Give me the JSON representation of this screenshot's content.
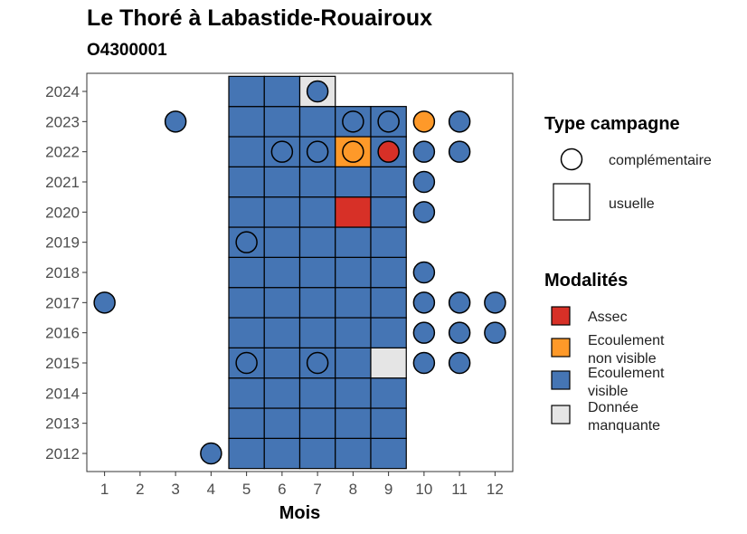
{
  "title": "Le Thoré à Labastide-Rouairoux",
  "subtitle": "O4300001",
  "colors": {
    "Assec": "#d73027",
    "Ecoulement non visible": "#fe9929",
    "Ecoulement visible": "#4575b4",
    "Donnée manquante": "#e5e5e5"
  },
  "chart_data": {
    "type": "heatmap",
    "xlabel": "Mois",
    "ylabel": "",
    "x_ticks": [
      "1",
      "2",
      "3",
      "4",
      "5",
      "6",
      "7",
      "8",
      "9",
      "10",
      "11",
      "12"
    ],
    "y_ticks": [
      "2012",
      "2013",
      "2014",
      "2015",
      "2016",
      "2017",
      "2018",
      "2019",
      "2020",
      "2021",
      "2022",
      "2023",
      "2024"
    ],
    "xlim": [
      0.5,
      12.5
    ],
    "ylim": [
      2011.4,
      2024.6
    ],
    "usuelle": [
      {
        "year": 2012,
        "month": 5,
        "modalite": "Ecoulement visible"
      },
      {
        "year": 2012,
        "month": 6,
        "modalite": "Ecoulement visible"
      },
      {
        "year": 2012,
        "month": 7,
        "modalite": "Ecoulement visible"
      },
      {
        "year": 2012,
        "month": 8,
        "modalite": "Ecoulement visible"
      },
      {
        "year": 2012,
        "month": 9,
        "modalite": "Ecoulement visible"
      },
      {
        "year": 2013,
        "month": 5,
        "modalite": "Ecoulement visible"
      },
      {
        "year": 2013,
        "month": 6,
        "modalite": "Ecoulement visible"
      },
      {
        "year": 2013,
        "month": 7,
        "modalite": "Ecoulement visible"
      },
      {
        "year": 2013,
        "month": 8,
        "modalite": "Ecoulement visible"
      },
      {
        "year": 2013,
        "month": 9,
        "modalite": "Ecoulement visible"
      },
      {
        "year": 2014,
        "month": 5,
        "modalite": "Ecoulement visible"
      },
      {
        "year": 2014,
        "month": 6,
        "modalite": "Ecoulement visible"
      },
      {
        "year": 2014,
        "month": 7,
        "modalite": "Ecoulement visible"
      },
      {
        "year": 2014,
        "month": 8,
        "modalite": "Ecoulement visible"
      },
      {
        "year": 2014,
        "month": 9,
        "modalite": "Ecoulement visible"
      },
      {
        "year": 2015,
        "month": 5,
        "modalite": "Ecoulement visible"
      },
      {
        "year": 2015,
        "month": 6,
        "modalite": "Ecoulement visible"
      },
      {
        "year": 2015,
        "month": 7,
        "modalite": "Ecoulement visible"
      },
      {
        "year": 2015,
        "month": 8,
        "modalite": "Ecoulement visible"
      },
      {
        "year": 2015,
        "month": 9,
        "modalite": "Donnée manquante"
      },
      {
        "year": 2016,
        "month": 5,
        "modalite": "Ecoulement visible"
      },
      {
        "year": 2016,
        "month": 6,
        "modalite": "Ecoulement visible"
      },
      {
        "year": 2016,
        "month": 7,
        "modalite": "Ecoulement visible"
      },
      {
        "year": 2016,
        "month": 8,
        "modalite": "Ecoulement visible"
      },
      {
        "year": 2016,
        "month": 9,
        "modalite": "Ecoulement visible"
      },
      {
        "year": 2017,
        "month": 5,
        "modalite": "Ecoulement visible"
      },
      {
        "year": 2017,
        "month": 6,
        "modalite": "Ecoulement visible"
      },
      {
        "year": 2017,
        "month": 7,
        "modalite": "Ecoulement visible"
      },
      {
        "year": 2017,
        "month": 8,
        "modalite": "Ecoulement visible"
      },
      {
        "year": 2017,
        "month": 9,
        "modalite": "Ecoulement visible"
      },
      {
        "year": 2018,
        "month": 5,
        "modalite": "Ecoulement visible"
      },
      {
        "year": 2018,
        "month": 6,
        "modalite": "Ecoulement visible"
      },
      {
        "year": 2018,
        "month": 7,
        "modalite": "Ecoulement visible"
      },
      {
        "year": 2018,
        "month": 8,
        "modalite": "Ecoulement visible"
      },
      {
        "year": 2018,
        "month": 9,
        "modalite": "Ecoulement visible"
      },
      {
        "year": 2019,
        "month": 5,
        "modalite": "Ecoulement visible"
      },
      {
        "year": 2019,
        "month": 6,
        "modalite": "Ecoulement visible"
      },
      {
        "year": 2019,
        "month": 7,
        "modalite": "Ecoulement visible"
      },
      {
        "year": 2019,
        "month": 8,
        "modalite": "Ecoulement visible"
      },
      {
        "year": 2019,
        "month": 9,
        "modalite": "Ecoulement visible"
      },
      {
        "year": 2020,
        "month": 5,
        "modalite": "Ecoulement visible"
      },
      {
        "year": 2020,
        "month": 6,
        "modalite": "Ecoulement visible"
      },
      {
        "year": 2020,
        "month": 7,
        "modalite": "Ecoulement visible"
      },
      {
        "year": 2020,
        "month": 8,
        "modalite": "Assec"
      },
      {
        "year": 2020,
        "month": 9,
        "modalite": "Ecoulement visible"
      },
      {
        "year": 2021,
        "month": 5,
        "modalite": "Ecoulement visible"
      },
      {
        "year": 2021,
        "month": 6,
        "modalite": "Ecoulement visible"
      },
      {
        "year": 2021,
        "month": 7,
        "modalite": "Ecoulement visible"
      },
      {
        "year": 2021,
        "month": 8,
        "modalite": "Ecoulement visible"
      },
      {
        "year": 2021,
        "month": 9,
        "modalite": "Ecoulement visible"
      },
      {
        "year": 2022,
        "month": 5,
        "modalite": "Ecoulement visible"
      },
      {
        "year": 2022,
        "month": 6,
        "modalite": "Ecoulement visible"
      },
      {
        "year": 2022,
        "month": 7,
        "modalite": "Ecoulement visible"
      },
      {
        "year": 2022,
        "month": 8,
        "modalite": "Ecoulement non visible"
      },
      {
        "year": 2022,
        "month": 9,
        "modalite": "Ecoulement visible"
      },
      {
        "year": 2023,
        "month": 5,
        "modalite": "Ecoulement visible"
      },
      {
        "year": 2023,
        "month": 6,
        "modalite": "Ecoulement visible"
      },
      {
        "year": 2023,
        "month": 7,
        "modalite": "Ecoulement visible"
      },
      {
        "year": 2023,
        "month": 8,
        "modalite": "Ecoulement visible"
      },
      {
        "year": 2023,
        "month": 9,
        "modalite": "Ecoulement visible"
      },
      {
        "year": 2024,
        "month": 5,
        "modalite": "Ecoulement visible"
      },
      {
        "year": 2024,
        "month": 6,
        "modalite": "Ecoulement visible"
      },
      {
        "year": 2024,
        "month": 7,
        "modalite": "Donnée manquante"
      }
    ],
    "complementaire": [
      {
        "year": 2012,
        "month": 4,
        "modalite": "Ecoulement visible"
      },
      {
        "year": 2015,
        "month": 5,
        "modalite": "Ecoulement visible"
      },
      {
        "year": 2015,
        "month": 7,
        "modalite": "Ecoulement visible"
      },
      {
        "year": 2015,
        "month": 10,
        "modalite": "Ecoulement visible"
      },
      {
        "year": 2015,
        "month": 11,
        "modalite": "Ecoulement visible"
      },
      {
        "year": 2016,
        "month": 10,
        "modalite": "Ecoulement visible"
      },
      {
        "year": 2016,
        "month": 11,
        "modalite": "Ecoulement visible"
      },
      {
        "year": 2016,
        "month": 12,
        "modalite": "Ecoulement visible"
      },
      {
        "year": 2017,
        "month": 1,
        "modalite": "Ecoulement visible"
      },
      {
        "year": 2017,
        "month": 10,
        "modalite": "Ecoulement visible"
      },
      {
        "year": 2017,
        "month": 11,
        "modalite": "Ecoulement visible"
      },
      {
        "year": 2017,
        "month": 12,
        "modalite": "Ecoulement visible"
      },
      {
        "year": 2018,
        "month": 10,
        "modalite": "Ecoulement visible"
      },
      {
        "year": 2019,
        "month": 5,
        "modalite": "Ecoulement visible"
      },
      {
        "year": 2020,
        "month": 10,
        "modalite": "Ecoulement visible"
      },
      {
        "year": 2021,
        "month": 10,
        "modalite": "Ecoulement visible"
      },
      {
        "year": 2022,
        "month": 6,
        "modalite": "Ecoulement visible"
      },
      {
        "year": 2022,
        "month": 7,
        "modalite": "Ecoulement visible"
      },
      {
        "year": 2022,
        "month": 8,
        "modalite": "Ecoulement non visible"
      },
      {
        "year": 2022,
        "month": 9,
        "modalite": "Assec"
      },
      {
        "year": 2022,
        "month": 10,
        "modalite": "Ecoulement visible"
      },
      {
        "year": 2022,
        "month": 11,
        "modalite": "Ecoulement visible"
      },
      {
        "year": 2023,
        "month": 3,
        "modalite": "Ecoulement visible"
      },
      {
        "year": 2023,
        "month": 8,
        "modalite": "Ecoulement visible"
      },
      {
        "year": 2023,
        "month": 9,
        "modalite": "Ecoulement visible"
      },
      {
        "year": 2023,
        "month": 10,
        "modalite": "Ecoulement non visible"
      },
      {
        "year": 2023,
        "month": 11,
        "modalite": "Ecoulement visible"
      },
      {
        "year": 2024,
        "month": 7,
        "modalite": "Ecoulement visible"
      }
    ],
    "legend_type": {
      "title": "Type campagne",
      "items": [
        {
          "shape": "circle",
          "label": "complémentaire"
        },
        {
          "shape": "square",
          "label": "usuelle"
        }
      ]
    },
    "legend_modalites": {
      "title": "Modalités",
      "items": [
        {
          "key": "Assec",
          "lines": [
            "Assec"
          ]
        },
        {
          "key": "Ecoulement non visible",
          "lines": [
            "Ecoulement",
            "non visible"
          ]
        },
        {
          "key": "Ecoulement visible",
          "lines": [
            "Ecoulement",
            "visible"
          ]
        },
        {
          "key": "Donnée manquante",
          "lines": [
            "Donnée",
            "manquante"
          ]
        }
      ]
    }
  }
}
